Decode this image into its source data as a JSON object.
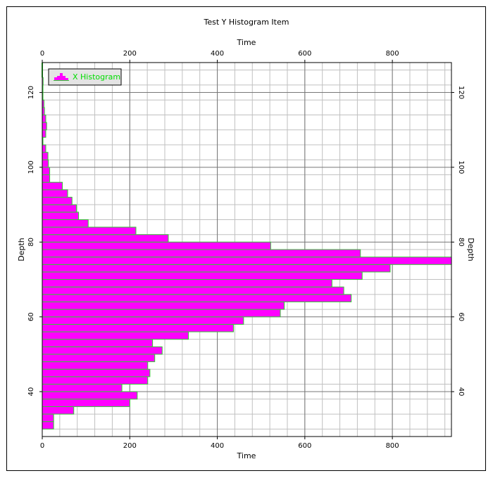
{
  "chart_data": {
    "type": "bar",
    "orientation": "horizontal",
    "title": "Test Y Histogram Item",
    "xlabel": "Time",
    "ylabel": "Depth",
    "xlim": [
      0,
      935
    ],
    "ylim": [
      28,
      128
    ],
    "xticks": [
      "0",
      "200",
      "400",
      "600",
      "800"
    ],
    "yticks": [
      "40",
      "60",
      "80",
      "100",
      "120"
    ],
    "grid": true,
    "legend": {
      "label": "X Histogram",
      "placement": "top-left"
    },
    "bin_width": 2,
    "colors": {
      "fill": "#ff00ff",
      "edge": "#33cc33",
      "legend_text": "#00dd00",
      "grid_major": "#777777",
      "grid_minor": "#c0c0c0"
    },
    "series": [
      {
        "name": "X Histogram",
        "bin_start": [
          30,
          32,
          34,
          36,
          38,
          40,
          42,
          44,
          46,
          48,
          50,
          52,
          54,
          56,
          58,
          60,
          62,
          64,
          66,
          68,
          70,
          72,
          74,
          76,
          78,
          80,
          82,
          84,
          86,
          88,
          90,
          92,
          94,
          96,
          98,
          100,
          102,
          104,
          106,
          108,
          110,
          112,
          114,
          116,
          118,
          120,
          122,
          124,
          126
        ],
        "values": [
          26,
          26,
          72,
          200,
          217,
          182,
          241,
          246,
          241,
          257,
          274,
          252,
          334,
          437,
          460,
          544,
          553,
          706,
          689,
          662,
          731,
          795,
          935,
          727,
          522,
          288,
          214,
          105,
          83,
          78,
          68,
          58,
          46,
          17,
          17,
          14,
          13,
          8,
          1,
          8,
          10,
          8,
          5,
          4,
          1,
          1,
          2,
          0,
          0
        ]
      }
    ]
  }
}
